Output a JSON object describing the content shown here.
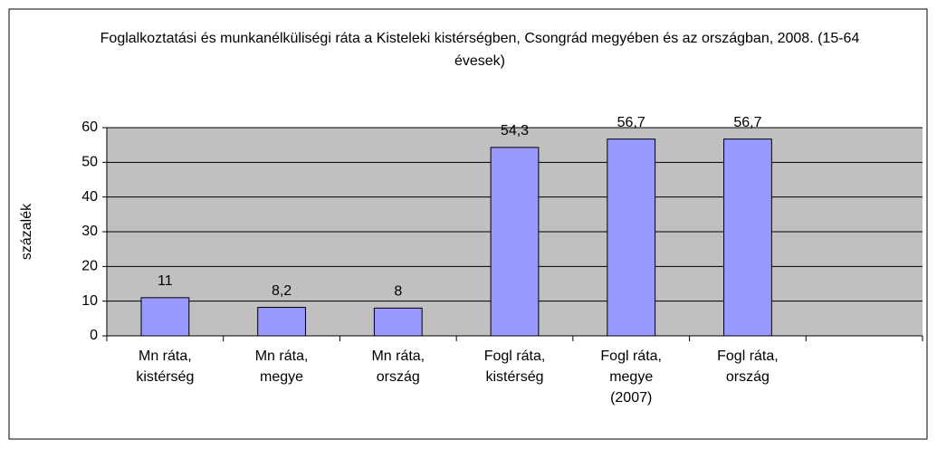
{
  "chart_data": {
    "type": "bar",
    "title": "Foglalkoztatási és munkanélküliségi ráta a Kisteleki kistérségben, Csongrád megyében és az országban, 2008. (15-64 évesek)",
    "y_label": "százalék",
    "categories": [
      "Mn ráta, kistérség",
      "Mn ráta, megye",
      "Mn ráta, ország",
      "Fogl ráta, kistérség",
      "Fogl ráta, megye (2007)",
      "Fogl ráta, ország",
      null
    ],
    "values": [
      11,
      8.2,
      8,
      54.3,
      56.7,
      56.7,
      null
    ],
    "value_labels": [
      "11",
      "8,2",
      "8",
      "54,3",
      "56,7",
      "56,7",
      null
    ],
    "color": "#9999ff",
    "ylim": [
      0,
      60
    ],
    "yticks": [
      0,
      10,
      20,
      30,
      40,
      50,
      60
    ],
    "grid": true
  }
}
